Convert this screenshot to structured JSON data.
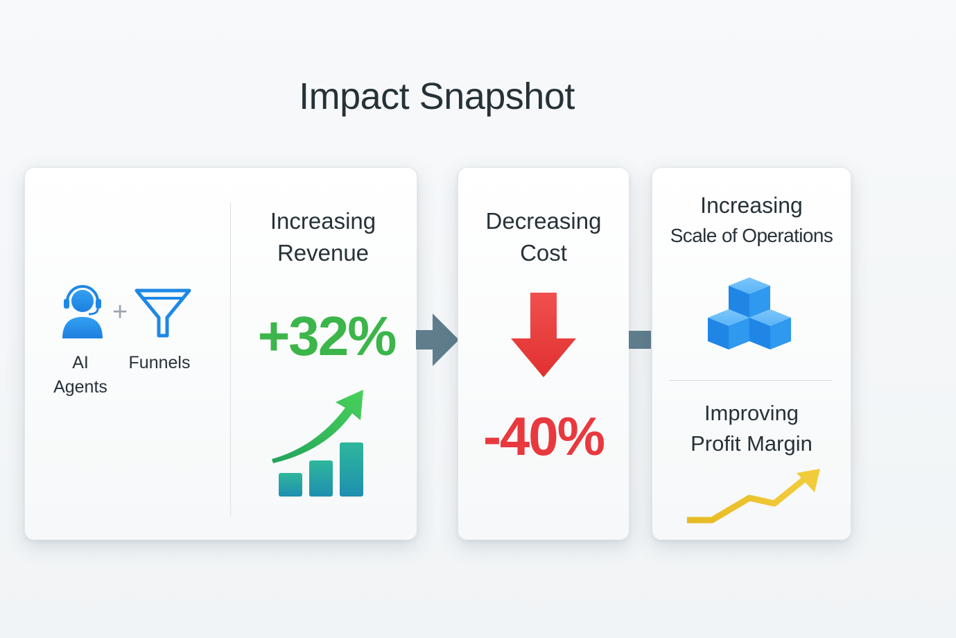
{
  "title": "Impact Snapshot",
  "left_card": {
    "agents_label_line1": "AI",
    "agents_label_line2": "Agents",
    "plus": "+",
    "funnels_label": "Funnels",
    "heading_line1": "Increasing",
    "heading_line2": "Revenue",
    "value": "+32%"
  },
  "middle_card": {
    "heading_line1": "Decreasing",
    "heading_line2": "Cost",
    "value": "-40%"
  },
  "right_card": {
    "top_heading_line1": "Increasing",
    "top_heading_line2": "Scale of Operations",
    "bottom_heading_line1": "Improving",
    "bottom_heading_line2": "Profit Margin"
  },
  "colors": {
    "green": "#3cb54a",
    "red": "#e8393f",
    "blue": "#1e88e5",
    "gold": "#e6b923",
    "connector": "#5f7d8c"
  },
  "icons": [
    "headset-agent-icon",
    "funnel-icon",
    "growth-chart-icon",
    "down-arrow-icon",
    "cubes-icon",
    "profit-trend-icon"
  ]
}
